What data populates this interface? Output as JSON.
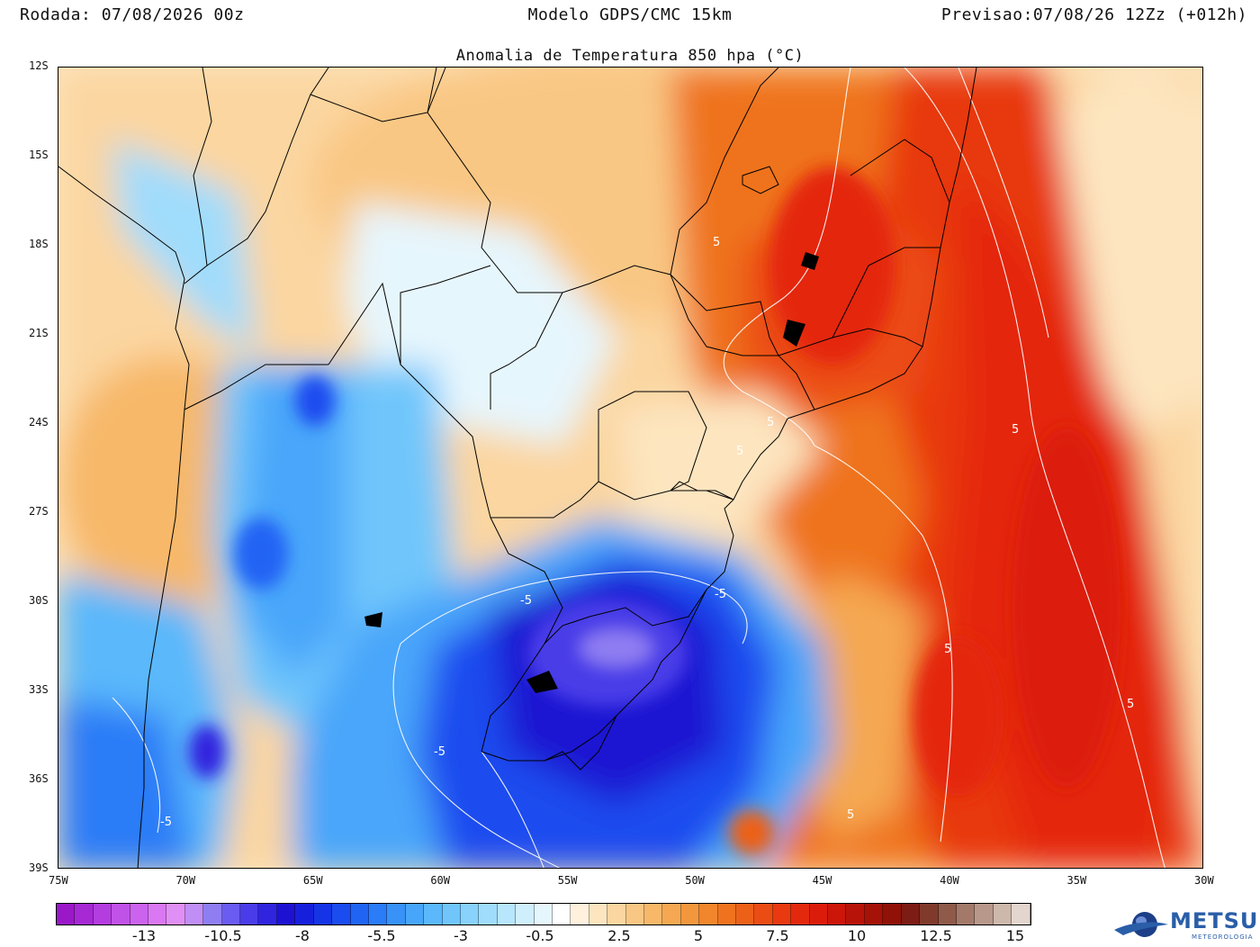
{
  "header": {
    "run": "Rodada: 07/08/2026 00z",
    "model": "Modelo GDPS/CMC 15km",
    "forecast": "Previsao:07/08/26 12Zz (+012h)"
  },
  "map": {
    "title": "Anomalia de Temperatura 850 hpa (°C)",
    "lat_labels": [
      "12S",
      "15S",
      "18S",
      "21S",
      "24S",
      "27S",
      "30S",
      "33S",
      "36S",
      "39S"
    ],
    "lon_labels": [
      "75W",
      "70W",
      "65W",
      "60W",
      "55W",
      "50W",
      "45W",
      "40W",
      "35W",
      "30W"
    ],
    "contour_labels": [
      "5",
      "5",
      "5",
      "5",
      "5",
      "5",
      "5",
      "-5",
      "-5",
      "-5",
      "-5"
    ],
    "bounds": {
      "lon_min": -75,
      "lon_max": -30,
      "lat_min": -39,
      "lat_max": -12
    }
  },
  "colorbar": {
    "labels": [
      "-13",
      "-10.5",
      "-8",
      "-5.5",
      "-3",
      "-0.5",
      "2.5",
      "5",
      "7.5",
      "10",
      "12.5",
      "15"
    ],
    "colors": [
      "#9a18c8",
      "#a629d4",
      "#b43ddf",
      "#c152e8",
      "#cc63ee",
      "#d978f2",
      "#e08ff5",
      "#c08ef4",
      "#8f7ef2",
      "#6a5cf0",
      "#4a3ce8",
      "#3024de",
      "#1e12d2",
      "#1620dc",
      "#1534e6",
      "#1a4cef",
      "#2064f4",
      "#2a7cf7",
      "#3892f8",
      "#48a6fa",
      "#5ab8fb",
      "#70c6fb",
      "#88d2fb",
      "#a0dcfc",
      "#b8e6fc",
      "#d0effc",
      "#e6f6fd",
      "#ffffff",
      "#fff1dc",
      "#fde5bf",
      "#fbd6a0",
      "#f9c784",
      "#f7b869",
      "#f5a851",
      "#f3973d",
      "#f1862c",
      "#ef731f",
      "#ed6018",
      "#eb4c13",
      "#e83910",
      "#e4280d",
      "#dc1c0b",
      "#cc160a",
      "#b81309",
      "#a41208",
      "#901108",
      "#7c1c14",
      "#803a2c",
      "#8f5a4a",
      "#a37a6a",
      "#b8988a",
      "#cdb8ac",
      "#e2d6ce"
    ]
  },
  "logo": {
    "name": "METSUL",
    "subtitle": "METEOROLOGIA"
  }
}
